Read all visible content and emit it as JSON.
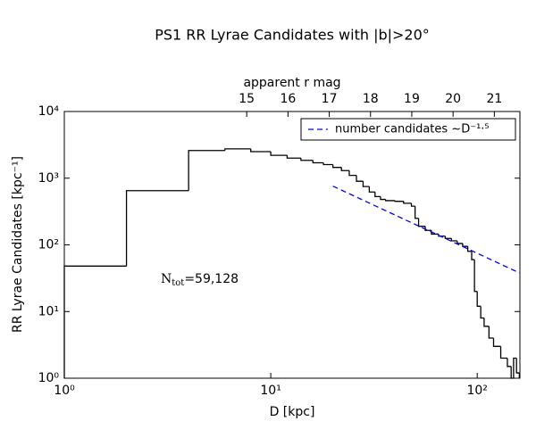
{
  "chart_data": {
    "type": "histogram",
    "title": "PS1 RR Lyrae Candidates with |b|>20°",
    "xlabel": "D [kpc]",
    "ylabel": "RR Lyrae Candidates [kpc⁻¹]",
    "x2label": "apparent r mag",
    "log_x": true,
    "log_y": true,
    "color": "#000000",
    "bins": [
      1,
      2,
      4,
      6,
      8,
      10,
      12,
      14,
      16,
      18,
      20,
      22,
      24,
      26,
      28,
      30,
      32,
      34,
      36,
      40,
      44,
      48,
      50,
      52,
      56,
      60,
      65,
      70,
      75,
      80,
      85,
      90,
      94,
      97,
      100,
      104,
      108,
      114,
      120,
      130,
      140,
      146,
      150,
      155,
      160
    ],
    "values": [
      48,
      650,
      2600,
      2750,
      2500,
      2200,
      2000,
      1850,
      1700,
      1600,
      1450,
      1300,
      1100,
      900,
      750,
      620,
      530,
      480,
      460,
      450,
      420,
      380,
      250,
      190,
      165,
      145,
      135,
      125,
      115,
      105,
      95,
      80,
      60,
      20,
      12,
      8,
      6,
      4,
      3,
      2,
      1.5,
      1,
      2,
      1.2
    ],
    "series": [
      {
        "name": "number candidates ∼D⁻¹·⁵",
        "color": "#0000ff",
        "linestyle": "dashed",
        "x": [
          20,
          160
        ],
        "values": [
          760,
          38
        ]
      }
    ],
    "legend": "upper right",
    "xlim": [
      1,
      161
    ],
    "ylim": [
      1,
      10000
    ],
    "xticks": [
      {
        "value": 1,
        "label": "10⁰"
      },
      {
        "value": 10,
        "label": "10¹"
      },
      {
        "value": 100,
        "label": "10²"
      }
    ],
    "yticks": [
      {
        "value": 1,
        "label": "10⁰"
      },
      {
        "value": 10,
        "label": "10¹"
      },
      {
        "value": 100,
        "label": "10²"
      },
      {
        "value": 1000,
        "label": "10³"
      },
      {
        "value": 10000,
        "label": "10⁴"
      }
    ],
    "x2lim": [
      10.58,
      21.62
    ],
    "x2ticks": [
      15,
      16,
      17,
      18,
      19,
      20,
      21
    ],
    "annotation": {
      "symbol": "N",
      "subscript": "tot",
      "text": "=59,128"
    }
  }
}
